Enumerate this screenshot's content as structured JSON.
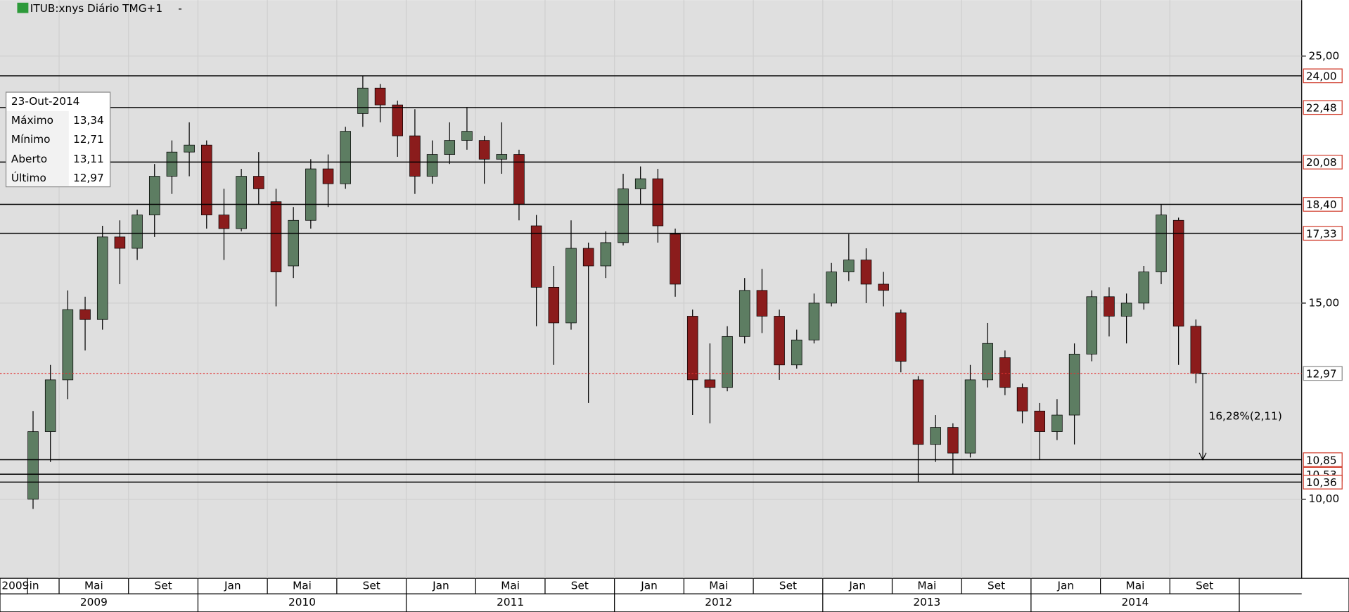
{
  "header": {
    "title": "ITUB:xnys Diário TMG+1",
    "menu": "-"
  },
  "info_box": {
    "date": "23-Out-2014",
    "rows": [
      [
        "Máximo",
        "13,34"
      ],
      [
        "Mínimo",
        "12,71"
      ],
      [
        "Aberto",
        "13,11"
      ],
      [
        "Último",
        "12,97"
      ]
    ]
  },
  "chart_data": {
    "type": "candlestick",
    "log_scale": true,
    "grid": true,
    "up_color": "#5d7d62",
    "down_color": "#8b1c1c",
    "x": [
      "2009-03",
      "2009-04",
      "2009-05",
      "2009-06",
      "2009-07",
      "2009-08",
      "2009-09",
      "2009-10",
      "2009-11",
      "2009-12",
      "2010-01",
      "2010-02",
      "2010-03",
      "2010-04",
      "2010-05",
      "2010-06",
      "2010-07",
      "2010-08",
      "2010-09",
      "2010-10",
      "2010-11",
      "2010-12",
      "2011-01",
      "2011-02",
      "2011-03",
      "2011-04",
      "2011-05",
      "2011-06",
      "2011-07",
      "2011-08",
      "2011-09",
      "2011-10",
      "2011-11",
      "2011-12",
      "2012-01",
      "2012-02",
      "2012-03",
      "2012-04",
      "2012-05",
      "2012-06",
      "2012-07",
      "2012-08",
      "2012-09",
      "2012-10",
      "2012-11",
      "2012-12",
      "2013-01",
      "2013-02",
      "2013-03",
      "2013-04",
      "2013-05",
      "2013-06",
      "2013-07",
      "2013-08",
      "2013-09",
      "2013-10",
      "2013-11",
      "2013-12",
      "2014-01",
      "2014-02",
      "2014-03",
      "2014-04",
      "2014-05",
      "2014-06",
      "2014-07",
      "2014-08",
      "2014-09",
      "2014-10"
    ],
    "open": [
      10.0,
      11.5,
      12.8,
      14.8,
      14.5,
      17.2,
      16.8,
      18.0,
      19.5,
      20.5,
      20.8,
      18.0,
      17.5,
      19.5,
      18.5,
      16.2,
      17.8,
      19.8,
      19.2,
      22.2,
      23.4,
      22.6,
      21.2,
      19.5,
      20.4,
      21.0,
      21.0,
      20.2,
      20.4,
      17.6,
      15.5,
      14.4,
      16.8,
      16.2,
      17.0,
      19.0,
      19.4,
      17.3,
      14.6,
      12.8,
      12.6,
      14.0,
      15.4,
      14.6,
      13.2,
      13.9,
      15.0,
      16.0,
      16.4,
      15.6,
      14.7,
      12.8,
      11.2,
      11.6,
      11.0,
      12.8,
      13.4,
      12.6,
      12.0,
      11.5,
      11.9,
      13.5,
      15.2,
      14.6,
      15.0,
      16.0,
      17.8,
      14.3
    ],
    "high": [
      12.0,
      13.2,
      15.4,
      15.2,
      17.6,
      17.8,
      18.2,
      20.0,
      21.0,
      21.8,
      21.0,
      19.0,
      19.8,
      20.5,
      19.0,
      18.3,
      20.2,
      20.4,
      21.6,
      24.0,
      23.6,
      22.8,
      22.4,
      21.0,
      21.8,
      22.5,
      21.2,
      21.8,
      20.6,
      18.0,
      16.2,
      17.8,
      17.0,
      17.4,
      19.6,
      19.9,
      19.8,
      17.5,
      14.8,
      13.8,
      14.3,
      15.8,
      16.1,
      14.8,
      14.2,
      15.3,
      16.3,
      17.3,
      16.8,
      16.0,
      14.8,
      12.9,
      11.9,
      11.7,
      13.2,
      14.4,
      13.6,
      12.7,
      12.2,
      12.3,
      13.8,
      15.4,
      15.5,
      15.3,
      16.2,
      18.4,
      17.9,
      14.5
    ],
    "low": [
      9.8,
      10.8,
      12.3,
      13.6,
      14.2,
      15.6,
      16.4,
      17.2,
      18.8,
      19.5,
      17.5,
      16.4,
      17.4,
      18.4,
      14.9,
      15.8,
      17.5,
      18.3,
      19.0,
      21.6,
      21.8,
      20.3,
      18.8,
      19.2,
      20.0,
      20.6,
      19.2,
      19.6,
      17.8,
      14.3,
      13.2,
      14.2,
      12.2,
      15.8,
      16.9,
      18.4,
      17.0,
      15.2,
      11.9,
      11.7,
      12.5,
      13.8,
      14.1,
      12.8,
      13.1,
      13.8,
      14.9,
      15.7,
      15.0,
      14.9,
      13.0,
      10.36,
      10.8,
      10.53,
      10.9,
      12.6,
      12.4,
      11.7,
      10.85,
      11.3,
      11.2,
      13.3,
      14.0,
      13.8,
      14.8,
      15.6,
      13.2,
      12.71
    ],
    "close": [
      11.5,
      12.8,
      14.8,
      14.5,
      17.2,
      16.8,
      18.0,
      19.5,
      20.5,
      20.8,
      18.0,
      17.5,
      19.5,
      19.0,
      16.0,
      17.8,
      19.8,
      19.2,
      21.4,
      23.4,
      22.6,
      21.2,
      19.5,
      20.4,
      21.0,
      21.4,
      20.2,
      20.4,
      18.4,
      15.5,
      14.4,
      16.8,
      16.2,
      17.0,
      19.0,
      19.4,
      17.6,
      15.6,
      12.8,
      12.6,
      14.0,
      15.4,
      14.6,
      13.2,
      13.9,
      15.0,
      16.0,
      16.4,
      15.6,
      15.4,
      13.3,
      11.2,
      11.6,
      11.0,
      12.8,
      13.8,
      12.6,
      12.0,
      11.5,
      11.9,
      13.5,
      15.2,
      14.6,
      15.0,
      16.0,
      18.0,
      14.3,
      12.97
    ],
    "xlim": [
      "2009-01",
      "2015-04"
    ],
    "ylim": [
      8.49,
      28.07
    ],
    "yticks": [
      {
        "value": 10,
        "label": "10,00"
      },
      {
        "value": 15,
        "label": "15,00"
      },
      {
        "value": 25,
        "label": "25,00"
      }
    ],
    "xticks": [
      {
        "value": "2009-01",
        "label": "in"
      },
      {
        "value": "2009-05",
        "label": "Mai"
      },
      {
        "value": "2009-09",
        "label": "Set"
      },
      {
        "value": "2010-01",
        "label": "Jan"
      },
      {
        "value": "2010-05",
        "label": "Mai"
      },
      {
        "value": "2010-09",
        "label": "Set"
      },
      {
        "value": "2011-01",
        "label": "Jan"
      },
      {
        "value": "2011-05",
        "label": "Mai"
      },
      {
        "value": "2011-09",
        "label": "Set"
      },
      {
        "value": "2012-01",
        "label": "Jan"
      },
      {
        "value": "2012-05",
        "label": "Mai"
      },
      {
        "value": "2012-09",
        "label": "Set"
      },
      {
        "value": "2013-01",
        "label": "Jan"
      },
      {
        "value": "2013-05",
        "label": "Mai"
      },
      {
        "value": "2013-09",
        "label": "Set"
      },
      {
        "value": "2014-01",
        "label": "Jan"
      },
      {
        "value": "2014-05",
        "label": "Mai"
      },
      {
        "value": "2014-09",
        "label": "Set"
      }
    ],
    "start_year": "2009",
    "years": [
      "2009",
      "2010",
      "2011",
      "2012",
      "2013",
      "2014"
    ],
    "levels": [
      {
        "value": 24,
        "label": "24,00"
      },
      {
        "value": 22.48,
        "label": "22,48"
      },
      {
        "value": 20.08,
        "label": "20,08"
      },
      {
        "value": 18.4,
        "label": "18,40"
      },
      {
        "value": 17.33,
        "label": "17,33"
      },
      {
        "value": 10.85,
        "label": "10,85"
      },
      {
        "value": 10.53,
        "label": "10,53"
      },
      {
        "value": 10.36,
        "label": "10,36"
      }
    ],
    "last": {
      "value": 12.97,
      "label": "12,97"
    },
    "annotation": "16,28%(2,11)"
  }
}
